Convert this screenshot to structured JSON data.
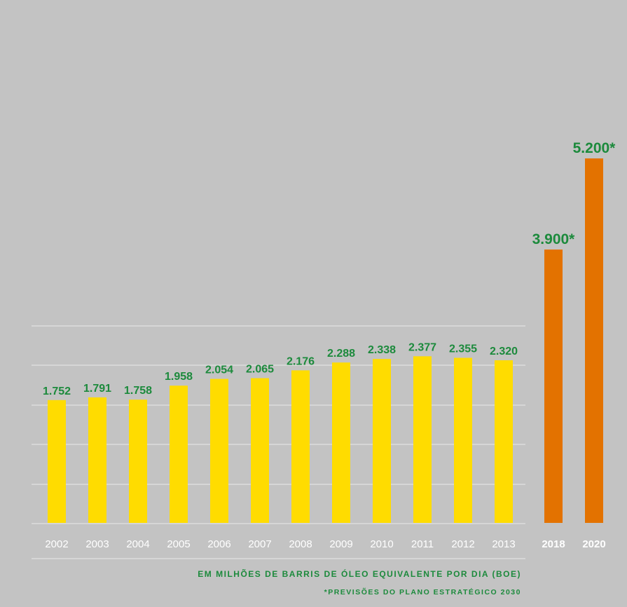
{
  "chart_data": {
    "type": "bar",
    "categories": [
      "2002",
      "2003",
      "2004",
      "2005",
      "2006",
      "2007",
      "2008",
      "2009",
      "2010",
      "2011",
      "2012",
      "2013",
      "2018",
      "2020"
    ],
    "values": [
      1.752,
      1.791,
      1.758,
      1.958,
      2.054,
      2.065,
      2.176,
      2.288,
      2.338,
      2.377,
      2.355,
      2.32,
      3.9,
      5.2
    ],
    "value_labels": [
      "1.752",
      "1.791",
      "1.758",
      "1.958",
      "2.054",
      "2.065",
      "2.176",
      "2.288",
      "2.338",
      "2.377",
      "2.355",
      "2.320",
      "3.900*",
      "5.200*"
    ],
    "forecast": [
      false,
      false,
      false,
      false,
      false,
      false,
      false,
      false,
      false,
      false,
      false,
      false,
      true,
      true
    ],
    "grid": true,
    "colors": {
      "background": "#c3c3c3",
      "actual_bar": "#ffdc00",
      "forecast_bar": "#e37200",
      "value_label": "#1c8a3c",
      "axis_label": "#ffffff",
      "gridline": "#dcdcdc"
    }
  },
  "notes": {
    "unit": "EM MILHÕES DE BARRIS DE ÓLEO EQUIVALENTE POR DIA (BOE)",
    "forecast": "*PREVISÕES DO PLANO ESTRATÉGICO 2030"
  }
}
